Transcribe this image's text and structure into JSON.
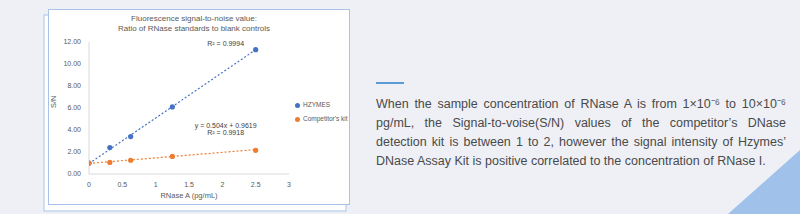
{
  "chart_data": {
    "type": "scatter",
    "title": "Fluorescence signal-to-noise value:",
    "subtitle": "Ratio of RNase standards to blank controls",
    "x_label": "RNase A (pg/mL)",
    "y_label": "S/N",
    "x": [
      0,
      0.3125,
      0.625,
      1.25,
      2.5
    ],
    "series": [
      {
        "name": "HZYMES",
        "color": "#4472c4",
        "marker": "circle",
        "line_style": "dotted",
        "values": [
          1.0,
          2.4,
          3.4,
          6.1,
          11.3
        ],
        "trend_x": [
          0,
          2.5
        ],
        "trend_values": [
          0.95,
          11.3
        ]
      },
      {
        "name": "Competitor's kit",
        "color": "#ed7d31",
        "marker": "circle",
        "line_style": "dotted",
        "values": [
          1.0,
          1.05,
          1.25,
          1.6,
          2.15
        ],
        "trend_x": [
          0,
          2.5
        ],
        "trend_values": [
          0.9619,
          2.2219
        ]
      }
    ],
    "xlim": [
      0,
      3
    ],
    "xticks": [
      0,
      0.5,
      1,
      1.5,
      2,
      2.5,
      3
    ],
    "ylim": [
      0,
      12
    ],
    "yticks": [
      {
        "value": 0,
        "label": "0.00"
      },
      {
        "value": 2,
        "label": "2.00"
      },
      {
        "value": 4,
        "label": "4.00"
      },
      {
        "value": 6,
        "label": "6.00"
      },
      {
        "value": 8,
        "label": "8.00"
      },
      {
        "value": 10,
        "label": "10.00"
      },
      {
        "value": 12,
        "label": "12.00"
      }
    ],
    "annotations": [
      {
        "text": "R² = 0.9994",
        "x": 2.05,
        "y": 11.9
      },
      {
        "text": "y = 0.504x + 0.9619",
        "x": 2.05,
        "y": 4.4
      },
      {
        "text": "R² = 0.9918",
        "x": 2.05,
        "y": 3.8
      }
    ],
    "legend": "right",
    "grid": false
  },
  "description": {
    "paragraph": "When the sample concentration of RNase A is from 1×10⁻⁶ to 10×10⁻⁶ pg/mL, the Signal-to-voise(S/N) values of the competitor’s DNase detection kit is between 1 to 2, however the signal intensity of Hzymes’ DNase Assay Kit is positive correlated to the concentration of RNase I."
  }
}
